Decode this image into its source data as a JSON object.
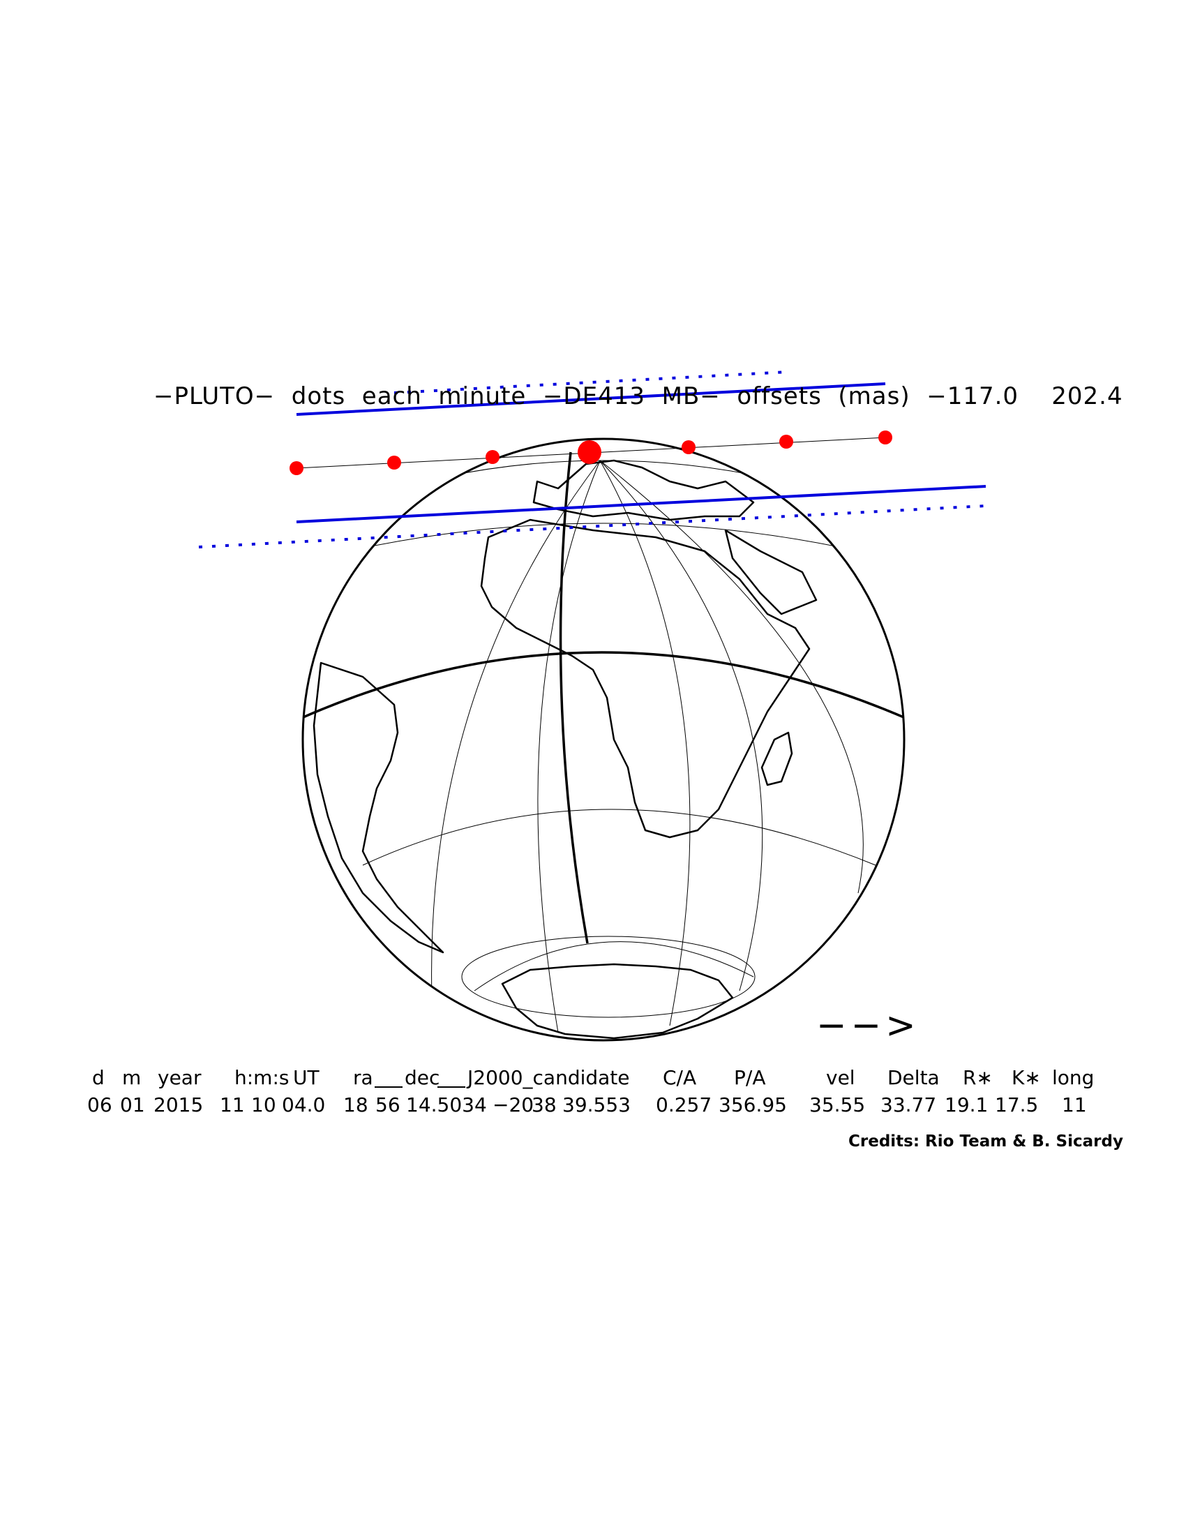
{
  "title": "−PLUTO−  dots  each  minute  −DE413  MB−  offsets  (mas)  −117.0    202.4",
  "direction_arrow": "−−>",
  "table": {
    "headers": [
      "d",
      "m",
      "year",
      "h:m:s",
      "UT",
      "ra",
      "dec",
      "J2000_candidate",
      "C/A",
      "P/A",
      "vel",
      "Delta",
      "R∗",
      "K∗",
      "long"
    ],
    "values": [
      "06",
      "01",
      "2015",
      "11",
      "10",
      "04.0",
      "18",
      "56",
      "14.5034",
      "−20",
      "38",
      "39.553",
      "0.257",
      "356.95",
      "35.55",
      "33.77",
      "19.1",
      "17.5",
      "11"
    ]
  },
  "credits": "Credits: Rio Team & B. Sicardy",
  "colors": {
    "shadow_limits": "#0000dd",
    "track_dots": "#ff0000",
    "globe": "#000000"
  },
  "map_elements": [
    "globe-outline",
    "graticule",
    "coastlines",
    "country-borders",
    "occultation-track",
    "shadow-limit-lines",
    "uncertainty-dotted-lines",
    "time-dots"
  ]
}
